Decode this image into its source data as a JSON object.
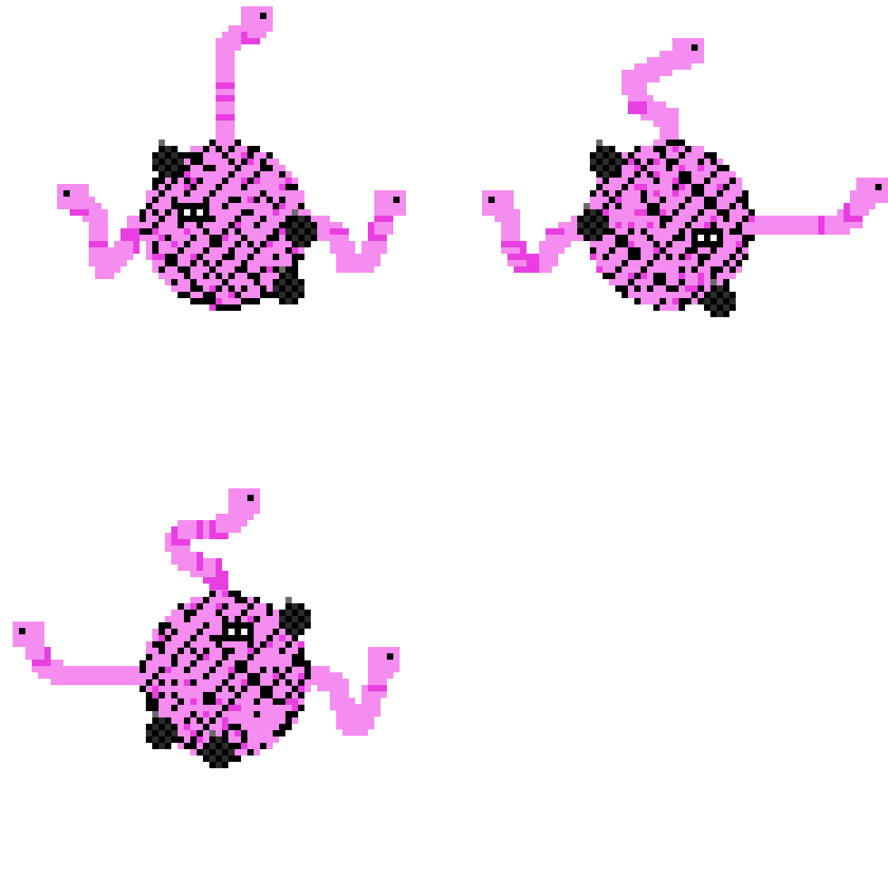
{
  "sheet": {
    "background": "#ffffff",
    "frame_count": 3
  },
  "palette": {
    "pink": "#f58cef",
    "magenta": "#e93ee0",
    "black": "#000000",
    "dark_gray": "#2b2b2b",
    "gray": "#6b6b6b",
    "eye_white": "#ffffff"
  },
  "sprites": [
    {
      "name": "yarn-worm-creature-frame-1",
      "variant": 1,
      "mirrored": false
    },
    {
      "name": "yarn-worm-creature-frame-2",
      "variant": 2,
      "mirrored": true
    },
    {
      "name": "yarn-worm-creature-frame-3",
      "variant": 3,
      "mirrored": false
    }
  ]
}
